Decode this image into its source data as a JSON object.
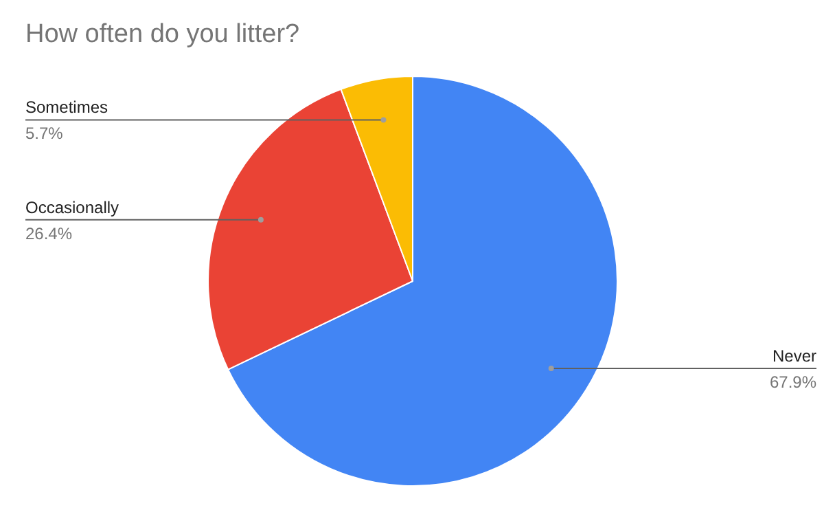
{
  "chart_data": {
    "type": "pie",
    "title": "How often do you litter?",
    "categories": [
      "Never",
      "Occasionally",
      "Sometimes"
    ],
    "values": [
      67.9,
      26.4,
      5.7
    ],
    "colors": [
      "#4285f4",
      "#ea4335",
      "#fbbc04"
    ],
    "value_labels": [
      "67.9%",
      "26.4%",
      "5.7%"
    ]
  }
}
